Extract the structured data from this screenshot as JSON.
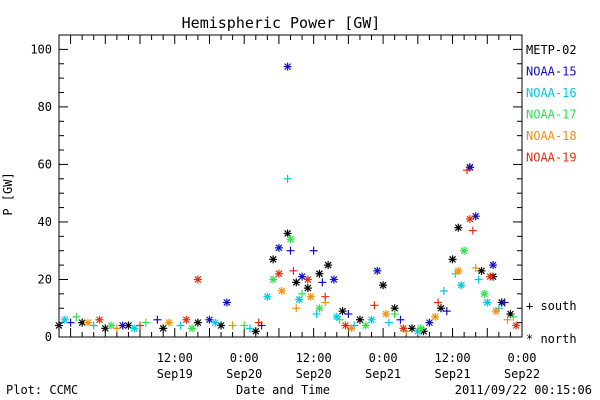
{
  "chart_data": {
    "type": "scatter",
    "title": "Hemispheric Power [GW]",
    "ylabel": "P [GW]",
    "xlabel": "Date and Time",
    "ylim": [
      0,
      105
    ],
    "xlim": [
      "2011-09-18 16:00",
      "2011-09-22 00:00"
    ],
    "y_ticks": [
      0,
      20,
      40,
      60,
      80,
      100
    ],
    "x_ticks": [
      {
        "time": "2011-09-19 12:00",
        "line1": "12:00",
        "line2": "Sep19"
      },
      {
        "time": "2011-09-20 00:00",
        "line1": "0:00",
        "line2": "Sep20"
      },
      {
        "time": "2011-09-20 12:00",
        "line1": "12:00",
        "line2": "Sep20"
      },
      {
        "time": "2011-09-21 00:00",
        "line1": "0:00",
        "line2": "Sep21"
      },
      {
        "time": "2011-09-21 12:00",
        "line1": "12:00",
        "line2": "Sep21"
      },
      {
        "time": "2011-09-22 00:00",
        "line1": "0:00",
        "line2": "Sep22"
      }
    ],
    "legend_position": "right",
    "marker_legend": {
      "south": "+  south",
      "north": "*  north"
    },
    "footer": {
      "left": "Plot: CCMC",
      "right": "2011/09/22 00:15:06"
    },
    "series": [
      {
        "name": "METP-02",
        "color": "#000000",
        "points": [
          [
            "2011-09-18 16:00",
            4,
            "*"
          ],
          [
            "2011-09-18 20:00",
            5,
            "*"
          ],
          [
            "2011-09-19 00:00",
            3,
            "*"
          ],
          [
            "2011-09-19 04:00",
            4,
            "*"
          ],
          [
            "2011-09-19 10:00",
            3,
            "*"
          ],
          [
            "2011-09-19 16:00",
            5,
            "*"
          ],
          [
            "2011-09-19 20:00",
            4,
            "*"
          ],
          [
            "2011-09-20 02:00",
            2,
            "*"
          ],
          [
            "2011-09-20 05:00",
            27,
            "*"
          ],
          [
            "2011-09-20 07:30",
            36,
            "*"
          ],
          [
            "2011-09-20 09:00",
            19,
            "*"
          ],
          [
            "2011-09-20 11:00",
            17,
            "*"
          ],
          [
            "2011-09-20 13:00",
            22,
            "*"
          ],
          [
            "2011-09-20 14:30",
            25,
            "*"
          ],
          [
            "2011-09-20 17:00",
            9,
            "*"
          ],
          [
            "2011-09-20 20:00",
            6,
            "*"
          ],
          [
            "2011-09-21 00:00",
            18,
            "*"
          ],
          [
            "2011-09-21 02:00",
            10,
            "*"
          ],
          [
            "2011-09-21 05:00",
            3,
            "*"
          ],
          [
            "2011-09-21 07:00",
            2,
            "*"
          ],
          [
            "2011-09-21 10:00",
            10,
            "*"
          ],
          [
            "2011-09-21 12:00",
            27,
            "*"
          ],
          [
            "2011-09-21 13:00",
            38,
            "*"
          ],
          [
            "2011-09-21 15:00",
            59,
            "*"
          ],
          [
            "2011-09-21 17:00",
            23,
            "*"
          ],
          [
            "2011-09-21 19:00",
            21,
            "*"
          ],
          [
            "2011-09-21 20:30",
            12,
            "*"
          ],
          [
            "2011-09-21 22:00",
            8,
            "*"
          ]
        ]
      },
      {
        "name": "NOAA-15",
        "color": "#1010c8",
        "points": [
          [
            "2011-09-18 18:00",
            5,
            "+"
          ],
          [
            "2011-09-19 03:00",
            4,
            "*"
          ],
          [
            "2011-09-19 09:00",
            6,
            "+"
          ],
          [
            "2011-09-19 18:00",
            6,
            "*"
          ],
          [
            "2011-09-19 21:00",
            12,
            "*"
          ],
          [
            "2011-09-20 03:00",
            4,
            "+"
          ],
          [
            "2011-09-20 06:00",
            31,
            "*"
          ],
          [
            "2011-09-20 07:30",
            94,
            "*"
          ],
          [
            "2011-09-20 08:00",
            30,
            "+"
          ],
          [
            "2011-09-20 10:00",
            21,
            "*"
          ],
          [
            "2011-09-20 12:00",
            30,
            "+"
          ],
          [
            "2011-09-20 13:30",
            19,
            "+"
          ],
          [
            "2011-09-20 15:30",
            20,
            "*"
          ],
          [
            "2011-09-20 18:00",
            8,
            "+"
          ],
          [
            "2011-09-20 23:00",
            23,
            "*"
          ],
          [
            "2011-09-21 03:00",
            6,
            "+"
          ],
          [
            "2011-09-21 08:00",
            5,
            "*"
          ],
          [
            "2011-09-21 11:00",
            9,
            "+"
          ],
          [
            "2011-09-21 15:00",
            59,
            "*"
          ],
          [
            "2011-09-21 16:00",
            42,
            "*"
          ],
          [
            "2011-09-21 19:00",
            25,
            "*"
          ],
          [
            "2011-09-21 21:00",
            12,
            "+"
          ]
        ]
      },
      {
        "name": "NOAA-16",
        "color": "#00c8e8",
        "points": [
          [
            "2011-09-18 17:00",
            6,
            "*"
          ],
          [
            "2011-09-18 22:00",
            4,
            "+"
          ],
          [
            "2011-09-19 05:00",
            3,
            "*"
          ],
          [
            "2011-09-19 13:00",
            4,
            "+"
          ],
          [
            "2011-09-19 19:00",
            5,
            "*"
          ],
          [
            "2011-09-20 01:00",
            3,
            "+"
          ],
          [
            "2011-09-20 04:00",
            14,
            "*"
          ],
          [
            "2011-09-20 07:30",
            55,
            "+"
          ],
          [
            "2011-09-20 09:30",
            13,
            "*"
          ],
          [
            "2011-09-20 12:30",
            8,
            "+"
          ],
          [
            "2011-09-20 16:00",
            7,
            "*"
          ],
          [
            "2011-09-20 19:00",
            4,
            "+"
          ],
          [
            "2011-09-20 22:00",
            6,
            "*"
          ],
          [
            "2011-09-21 01:00",
            5,
            "+"
          ],
          [
            "2011-09-21 06:00",
            2,
            "*"
          ],
          [
            "2011-09-21 10:30",
            16,
            "+"
          ],
          [
            "2011-09-21 13:30",
            18,
            "*"
          ],
          [
            "2011-09-21 16:30",
            20,
            "+"
          ],
          [
            "2011-09-21 18:00",
            12,
            "*"
          ],
          [
            "2011-09-21 20:00",
            10,
            "+"
          ]
        ]
      },
      {
        "name": "NOAA-17",
        "color": "#30e050",
        "points": [
          [
            "2011-09-18 19:00",
            7,
            "+"
          ],
          [
            "2011-09-19 01:00",
            4,
            "*"
          ],
          [
            "2011-09-19 07:00",
            5,
            "+"
          ],
          [
            "2011-09-19 15:00",
            3,
            "*"
          ],
          [
            "2011-09-20 00:00",
            4,
            "+"
          ],
          [
            "2011-09-20 05:00",
            20,
            "*"
          ],
          [
            "2011-09-20 08:00",
            34,
            "*"
          ],
          [
            "2011-09-20 10:00",
            15,
            "+"
          ],
          [
            "2011-09-20 13:00",
            10,
            "*"
          ],
          [
            "2011-09-20 16:30",
            6,
            "+"
          ],
          [
            "2011-09-20 21:00",
            4,
            "*"
          ],
          [
            "2011-09-21 02:00",
            8,
            "+"
          ],
          [
            "2011-09-21 06:30",
            3,
            "*"
          ],
          [
            "2011-09-21 12:30",
            22,
            "+"
          ],
          [
            "2011-09-21 14:00",
            30,
            "*"
          ],
          [
            "2011-09-21 17:30",
            15,
            "*"
          ],
          [
            "2011-09-21 22:30",
            7,
            "+"
          ]
        ]
      },
      {
        "name": "NOAA-18",
        "color": "#f09010",
        "points": [
          [
            "2011-09-18 21:00",
            5,
            "*"
          ],
          [
            "2011-09-19 02:00",
            3,
            "+"
          ],
          [
            "2011-09-19 11:00",
            5,
            "*"
          ],
          [
            "2011-09-19 22:00",
            4,
            "+"
          ],
          [
            "2011-09-20 06:30",
            16,
            "*"
          ],
          [
            "2011-09-20 09:00",
            10,
            "+"
          ],
          [
            "2011-09-20 11:30",
            14,
            "*"
          ],
          [
            "2011-09-20 14:00",
            12,
            "+"
          ],
          [
            "2011-09-20 18:30",
            3,
            "*"
          ],
          [
            "2011-09-21 00:30",
            8,
            "*"
          ],
          [
            "2011-09-21 04:00",
            2,
            "+"
          ],
          [
            "2011-09-21 09:00",
            7,
            "*"
          ],
          [
            "2011-09-21 13:00",
            23,
            "*"
          ],
          [
            "2011-09-21 16:00",
            24,
            "+"
          ],
          [
            "2011-09-21 19:30",
            9,
            "*"
          ],
          [
            "2011-09-21 21:30",
            6,
            "+"
          ]
        ]
      },
      {
        "name": "NOAA-19",
        "color": "#e03010",
        "points": [
          [
            "2011-09-18 23:00",
            6,
            "*"
          ],
          [
            "2011-09-19 06:00",
            4,
            "+"
          ],
          [
            "2011-09-19 14:00",
            6,
            "*"
          ],
          [
            "2011-09-19 16:00",
            20,
            "*"
          ],
          [
            "2011-09-20 02:30",
            5,
            "+"
          ],
          [
            "2011-09-20 06:00",
            22,
            "*"
          ],
          [
            "2011-09-20 08:30",
            23,
            "+"
          ],
          [
            "2011-09-20 11:00",
            20,
            "*"
          ],
          [
            "2011-09-20 14:00",
            14,
            "+"
          ],
          [
            "2011-09-20 17:30",
            4,
            "*"
          ],
          [
            "2011-09-20 22:30",
            11,
            "+"
          ],
          [
            "2011-09-21 03:30",
            3,
            "*"
          ],
          [
            "2011-09-21 09:30",
            12,
            "+"
          ],
          [
            "2011-09-21 14:30",
            58,
            "+"
          ],
          [
            "2011-09-21 15:00",
            41,
            "*"
          ],
          [
            "2011-09-21 15:30",
            37,
            "+"
          ],
          [
            "2011-09-21 18:30",
            21,
            "*"
          ],
          [
            "2011-09-21 23:00",
            4,
            "*"
          ]
        ]
      }
    ]
  }
}
